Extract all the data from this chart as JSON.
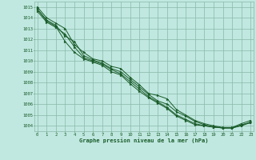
{
  "xlabel": "Graphe pression niveau de la mer (hPa)",
  "ylim": [
    1003.5,
    1015.5
  ],
  "xlim": [
    -0.3,
    23.3
  ],
  "yticks": [
    1004,
    1005,
    1006,
    1007,
    1008,
    1009,
    1010,
    1011,
    1012,
    1013,
    1014,
    1015
  ],
  "xticks": [
    0,
    1,
    2,
    3,
    4,
    5,
    6,
    7,
    8,
    9,
    10,
    11,
    12,
    13,
    14,
    15,
    16,
    17,
    18,
    19,
    20,
    21,
    22,
    23
  ],
  "bg_color": "#c0e8e0",
  "grid_color": "#88b8a8",
  "line_color": "#1a5c2a",
  "label_color": "#1a5c2a",
  "series": [
    [
      1015.0,
      1014.0,
      1013.5,
      1013.0,
      1011.5,
      1010.8,
      1010.2,
      1010.0,
      1009.5,
      1009.3,
      1008.5,
      1007.8,
      1007.0,
      1006.8,
      1006.5,
      1005.5,
      1005.0,
      1004.5,
      1004.2,
      1004.0,
      1003.85,
      1003.85,
      1004.2,
      1004.5
    ],
    [
      1014.8,
      1013.8,
      1013.3,
      1012.3,
      1011.8,
      1010.5,
      1010.1,
      1009.8,
      1009.3,
      1009.0,
      1008.3,
      1007.6,
      1006.9,
      1006.3,
      1006.0,
      1005.3,
      1004.9,
      1004.4,
      1004.1,
      1003.9,
      1003.8,
      1003.8,
      1004.1,
      1004.3
    ],
    [
      1014.8,
      1013.7,
      1013.2,
      1011.8,
      1010.8,
      1010.2,
      1009.9,
      1009.6,
      1009.0,
      1008.7,
      1007.9,
      1007.2,
      1006.6,
      1006.1,
      1005.6,
      1004.9,
      1004.5,
      1004.1,
      1004.0,
      1003.9,
      1003.8,
      1003.8,
      1004.0,
      1004.3
    ],
    [
      1014.6,
      1013.6,
      1013.1,
      1012.5,
      1011.3,
      1010.3,
      1010.0,
      1009.7,
      1009.2,
      1008.8,
      1008.1,
      1007.4,
      1006.7,
      1006.2,
      1005.7,
      1005.0,
      1004.6,
      1004.2,
      1004.0,
      1003.87,
      1003.8,
      1003.8,
      1004.05,
      1004.35
    ]
  ]
}
